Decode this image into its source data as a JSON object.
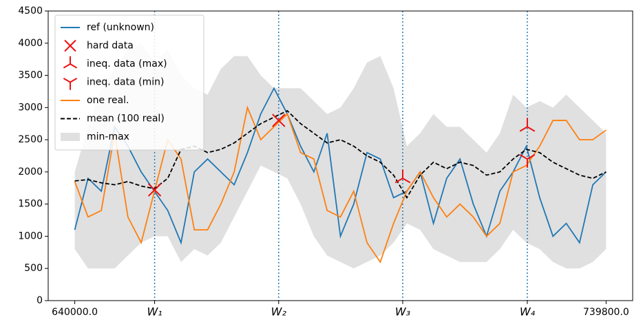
{
  "chart_data": {
    "type": "line",
    "xlim": [
      635010,
      744790
    ],
    "ylim": [
      0,
      4500
    ],
    "yticks": [
      0,
      500,
      1000,
      1500,
      2000,
      2500,
      3000,
      3500,
      4000,
      4500
    ],
    "xticks": [
      {
        "value": 640000,
        "label": "640000.0"
      },
      {
        "value": 739800,
        "label": "739800.0"
      }
    ],
    "wells": [
      {
        "value": 655000,
        "label": "W₁"
      },
      {
        "value": 678300,
        "label": "W₂"
      },
      {
        "value": 701600,
        "label": "W₃"
      },
      {
        "value": 725000,
        "label": "W₄"
      }
    ],
    "well_color": "#1f77b4",
    "legend": "upper left",
    "x": [
      640000,
      642495,
      644990,
      647485,
      649980,
      652475,
      654970,
      657465,
      659960,
      662455,
      664950,
      667445,
      669940,
      672435,
      674930,
      677425,
      679920,
      682415,
      684910,
      687405,
      689900,
      692395,
      694890,
      697385,
      699880,
      702375,
      704870,
      707365,
      709860,
      712355,
      714850,
      717345,
      719840,
      722335,
      724830,
      727325,
      729820,
      732315,
      734810,
      737305,
      739800
    ],
    "band": {
      "name": "min-max",
      "color": "#e0e0e0",
      "lower": [
        800,
        500,
        500,
        500,
        700,
        900,
        1000,
        1000,
        600,
        800,
        700,
        900,
        1300,
        1700,
        2100,
        2000,
        1900,
        1500,
        1000,
        700,
        600,
        500,
        600,
        700,
        900,
        1200,
        1100,
        800,
        700,
        600,
        600,
        600,
        800,
        1100,
        900,
        800,
        600,
        500,
        500,
        600,
        800
      ],
      "upper": [
        2000,
        2700,
        3300,
        3600,
        3900,
        4000,
        3700,
        3900,
        3500,
        3300,
        3200,
        3600,
        3800,
        3800,
        3500,
        3300,
        3300,
        3300,
        3100,
        2900,
        3000,
        3300,
        3700,
        3800,
        3300,
        2400,
        2600,
        2900,
        2700,
        2700,
        2500,
        2300,
        2600,
        3200,
        3000,
        3100,
        3000,
        3200,
        3000,
        2800,
        2600
      ]
    },
    "series": [
      {
        "name": "ref (unknown)",
        "color": "#1f77b4",
        "style": "solid",
        "values": [
          1100,
          1900,
          1700,
          2700,
          2400,
          2000,
          1700,
          1400,
          900,
          2000,
          2200,
          2000,
          1800,
          2300,
          2900,
          3300,
          2900,
          2400,
          2000,
          2600,
          1000,
          1500,
          2300,
          2200,
          1600,
          1700,
          2000,
          1200,
          1900,
          2200,
          1500,
          1000,
          1700,
          2000,
          2400,
          1600,
          1000,
          1200,
          900,
          1800,
          2000
        ]
      },
      {
        "name": "one real.",
        "color": "#ff7f0e",
        "style": "solid",
        "values": [
          1850,
          1300,
          1400,
          2600,
          1300,
          900,
          1700,
          2500,
          2200,
          1100,
          1100,
          1500,
          2000,
          3000,
          2500,
          2700,
          2900,
          2300,
          2200,
          1400,
          1300,
          1700,
          900,
          600,
          1200,
          1700,
          2000,
          1600,
          1300,
          1500,
          1300,
          1000,
          1200,
          2000,
          2100,
          2400,
          2800,
          2800,
          2500,
          2500,
          2650
        ]
      },
      {
        "name": "mean (100 real)",
        "color": "#000000",
        "style": "dashed",
        "values": [
          1860,
          1880,
          1830,
          1800,
          1850,
          1780,
          1740,
          1900,
          2350,
          2400,
          2300,
          2350,
          2450,
          2600,
          2750,
          2850,
          2950,
          2750,
          2600,
          2450,
          2500,
          2400,
          2250,
          2150,
          1950,
          1600,
          1950,
          2150,
          2050,
          2150,
          2100,
          1950,
          2000,
          2200,
          2350,
          2300,
          2150,
          2050,
          1950,
          1900,
          2000
        ]
      }
    ],
    "points": [
      {
        "name": "hard data",
        "color": "#ee1111",
        "marker": "x",
        "x": [
          655000,
          678300
        ],
        "values": [
          1720,
          2800
        ]
      },
      {
        "name": "ineq. data (max)",
        "color": "#ee1111",
        "marker": "tri_up",
        "x": [
          701600,
          725000
        ],
        "values": [
          1900,
          2700
        ]
      },
      {
        "name": "ineq. data (min)",
        "color": "#ee1111",
        "marker": "tri_down",
        "x": [
          725000
        ],
        "values": [
          2200
        ]
      }
    ]
  }
}
